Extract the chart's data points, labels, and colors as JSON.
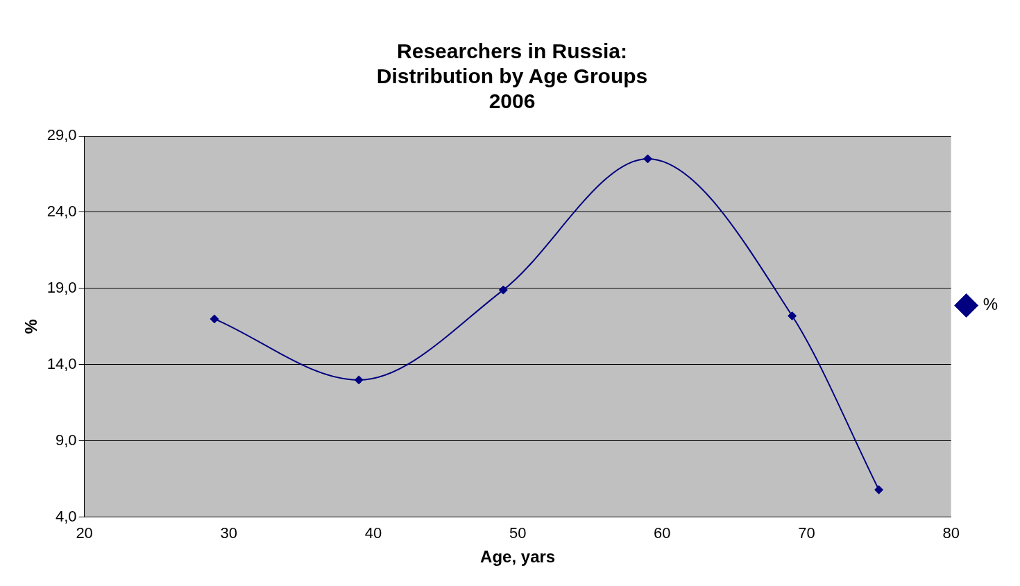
{
  "chart_data": {
    "type": "line",
    "title": "Researchers in Russia:\nDistribution by Age Groups\n2006",
    "xlabel": "Age, yars",
    "ylabel": "%",
    "x": [
      29,
      39,
      49,
      59,
      69,
      75
    ],
    "series": [
      {
        "name": "%",
        "color": "#000080",
        "values": [
          17.0,
          13.0,
          18.9,
          27.5,
          17.2,
          5.8
        ]
      }
    ],
    "xlim": [
      20,
      80
    ],
    "xticks": [
      20,
      30,
      40,
      50,
      60,
      70,
      80
    ],
    "ylim": [
      4,
      29
    ],
    "yticks": [
      {
        "value": 4,
        "label": "4,0"
      },
      {
        "value": 9,
        "label": "9,0"
      },
      {
        "value": 14,
        "label": "14,0"
      },
      {
        "value": 19,
        "label": "19,0"
      },
      {
        "value": 24,
        "label": "24,0"
      },
      {
        "value": 29,
        "label": "29,0"
      }
    ],
    "grid": "y",
    "legend": "right",
    "marker": "diamond",
    "line_style": "solid"
  }
}
